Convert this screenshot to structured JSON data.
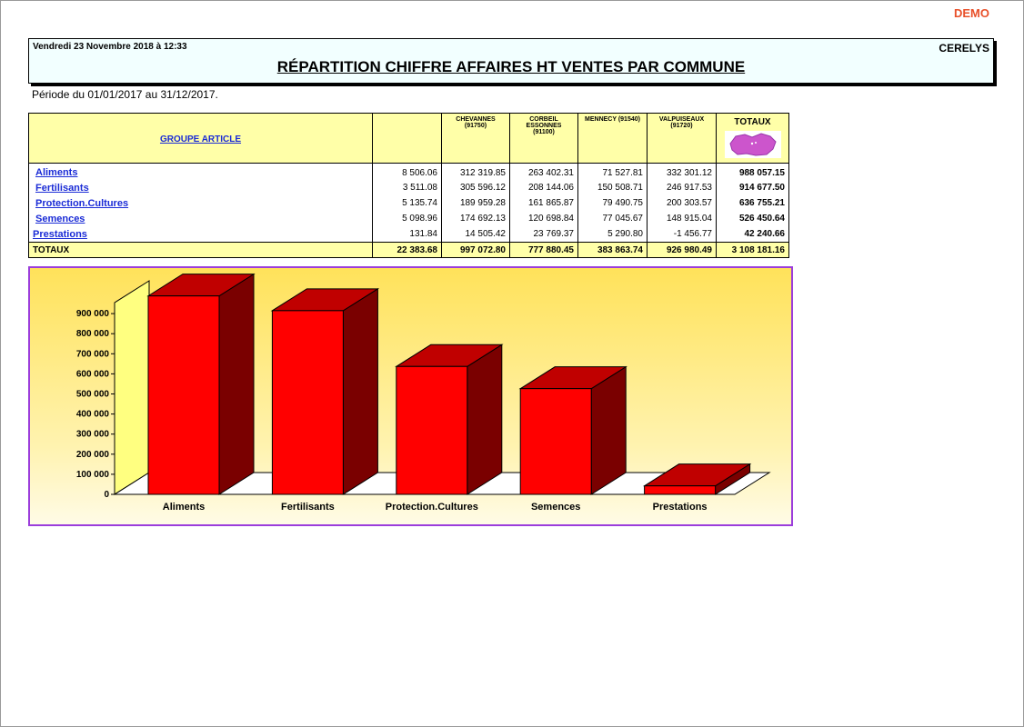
{
  "demo_label": "DEMO",
  "header": {
    "date": "Vendredi 23 Novembre 2018 à 12:33",
    "app": "CERELYS",
    "title": "RÉPARTITION CHIFFRE AFFAIRES HT VENTES PAR COMMUNE"
  },
  "period": "Période du 01/01/2017 au 31/12/2017.",
  "table": {
    "group_header": "GROUPE ARTICLE",
    "columns": [
      {
        "name": "",
        "code": ""
      },
      {
        "name": "CHEVANNES",
        "code": "(91750)"
      },
      {
        "name": "CORBEIL ESSONNES",
        "code": "(91100)"
      },
      {
        "name": "MENNECY (91540)",
        "code": ""
      },
      {
        "name": "VALPUISEAUX",
        "code": "(91720)"
      }
    ],
    "totals_header": "TOTAUX",
    "map_icon": "map-region-icon",
    "rows": [
      {
        "label": "Aliments",
        "values": [
          "8 506.06",
          "312 319.85",
          "263 402.31",
          "71 527.81",
          "332 301.12"
        ],
        "total": "988 057.15"
      },
      {
        "label": "Fertilisants",
        "values": [
          "3 511.08",
          "305 596.12",
          "208 144.06",
          "150 508.71",
          "246 917.53"
        ],
        "total": "914 677.50"
      },
      {
        "label": "Protection.Cultures",
        "values": [
          "5 135.74",
          "189 959.28",
          "161 865.87",
          "79 490.75",
          "200 303.57"
        ],
        "total": "636 755.21"
      },
      {
        "label": "Semences",
        "values": [
          "5 098.96",
          "174 692.13",
          "120 698.84",
          "77 045.67",
          "148 915.04"
        ],
        "total": "526 450.64"
      },
      {
        "label": "Prestations",
        "values": [
          "131.84",
          "14 505.42",
          "23 769.37",
          "5 290.80",
          "-1 456.77"
        ],
        "total": "42 240.66"
      }
    ],
    "totals_row": {
      "label": "TOTAUX",
      "values": [
        "22 383.68",
        "997 072.80",
        "777 880.45",
        "383 863.74",
        "926 980.49"
      ],
      "total": "3 108 181.16"
    }
  },
  "chart_data": {
    "type": "bar",
    "categories": [
      "Aliments",
      "Fertilisants",
      "Protection.Cultures",
      "Semences",
      "Prestations"
    ],
    "values": [
      988057.15,
      914677.5,
      636755.21,
      526450.64,
      42240.66
    ],
    "yticks": [
      "0",
      "100 000",
      "200 000",
      "300 000",
      "400 000",
      "500 000",
      "600 000",
      "700 000",
      "800 000",
      "900 000"
    ],
    "ylim": [
      0,
      1000000
    ],
    "bar_colors": {
      "front": "#ff0000",
      "top": "#c00000",
      "side": "#7a0000"
    },
    "back_wall_color": "#ffff80",
    "grid": false
  }
}
